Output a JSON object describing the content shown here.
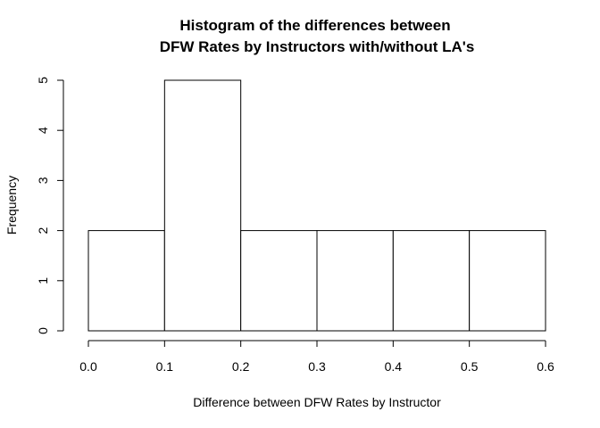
{
  "chart_data": {
    "type": "bar",
    "title_lines": [
      "Histogram of the differences between",
      "DFW Rates by Instructors with/without LA's"
    ],
    "xlabel": "Difference between DFW Rates by Instructor",
    "ylabel": "Frequency",
    "bins": [
      {
        "start": 0.0,
        "end": 0.1,
        "count": 2
      },
      {
        "start": 0.1,
        "end": 0.2,
        "count": 5
      },
      {
        "start": 0.2,
        "end": 0.3,
        "count": 2
      },
      {
        "start": 0.3,
        "end": 0.4,
        "count": 2
      },
      {
        "start": 0.4,
        "end": 0.5,
        "count": 2
      },
      {
        "start": 0.5,
        "end": 0.6,
        "count": 2
      }
    ],
    "xlim": [
      0,
      0.6
    ],
    "ylim": [
      0,
      5
    ],
    "x_ticks": [
      "0.0",
      "0.1",
      "0.2",
      "0.3",
      "0.4",
      "0.5",
      "0.6"
    ],
    "y_ticks": [
      "0",
      "1",
      "2",
      "3",
      "4",
      "5"
    ],
    "grid": false,
    "bar_fill": "#ffffff",
    "bar_stroke": "#000000"
  }
}
